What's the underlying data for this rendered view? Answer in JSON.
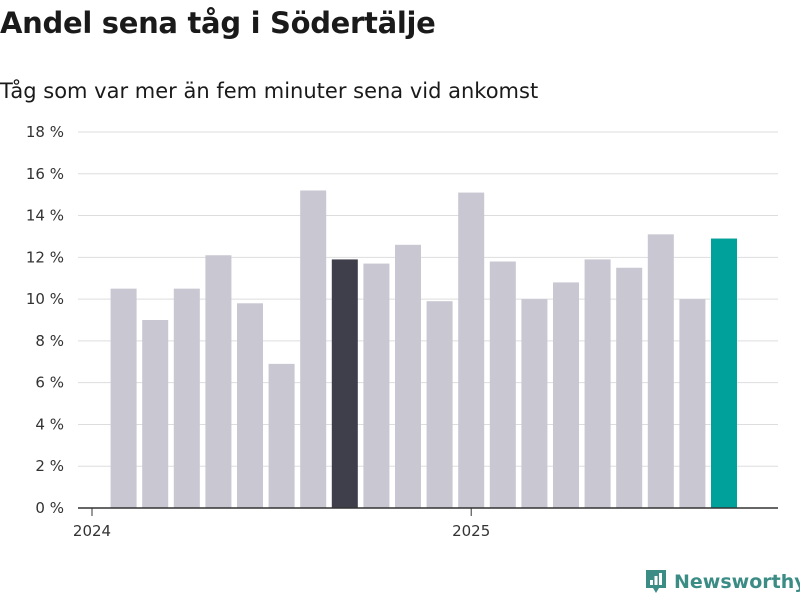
{
  "chart_data": {
    "type": "bar",
    "title": "Andel sena tåg i Södertälje",
    "subtitle": "Tåg som var mer än fem minuter sena vid ankomst",
    "xlabel": "",
    "ylabel": "",
    "ylim": [
      0,
      18
    ],
    "yticks": [
      0,
      2,
      4,
      6,
      8,
      10,
      12,
      14,
      16,
      18
    ],
    "ytick_labels": [
      "0 %",
      "2 %",
      "4 %",
      "6 %",
      "8 %",
      "10 %",
      "12 %",
      "14 %",
      "16 %",
      "18 %"
    ],
    "x_ticks": [
      {
        "label": "2024",
        "month_index": 0
      },
      {
        "label": "2025",
        "month_index": 12
      }
    ],
    "month_index": [
      1,
      2,
      3,
      4,
      5,
      6,
      7,
      8,
      9,
      10,
      11,
      12,
      13,
      14,
      15,
      16,
      17,
      18,
      19,
      20
    ],
    "values": [
      10.5,
      9.0,
      10.5,
      12.1,
      9.8,
      6.9,
      15.2,
      11.9,
      11.7,
      12.6,
      9.9,
      15.1,
      11.8,
      10.0,
      10.8,
      11.9,
      11.5,
      13.1,
      10.0,
      12.9
    ],
    "highlight_index": 7,
    "latest_index": 19,
    "grid": true,
    "colors": {
      "default": "#c8c7d2",
      "highlight": "#3f3e4b",
      "latest": "#00a19a",
      "grid": "#dddddd",
      "axis": "#333333"
    }
  },
  "brand": {
    "name": "Newsworthy",
    "icon": "newsworthy-bar-icon",
    "color": "#3c8c86"
  }
}
